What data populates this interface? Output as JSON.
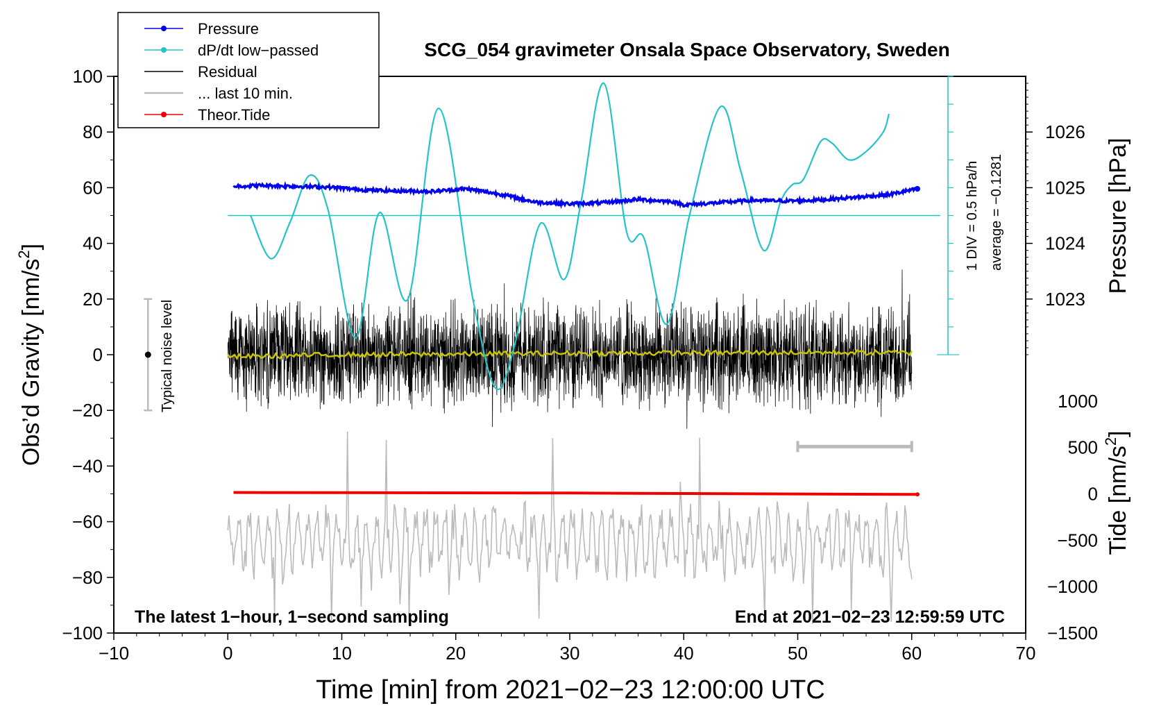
{
  "chart_data": {
    "type": "line",
    "title": "SCG_054 gravimeter Onsala Space Observatory, Sweden",
    "xlabel": "Time [min] from 2021−02−23 12:00:00 UTC",
    "ylabel_main": "Obs’d Gravity [nm/s",
    "ylabel_main_sup": "2",
    "ylabel_main_end": "]",
    "ylabel_pressure": "Pressure [hPa]",
    "ylabel_tide": "Tide [nm/s",
    "ylabel_tide_sup": "2",
    "ylabel_tide_end": "]",
    "xlim": [
      -10,
      70
    ],
    "ylim": [
      -100,
      100
    ],
    "x_ticks": [
      -10,
      0,
      10,
      20,
      30,
      40,
      50,
      60,
      70
    ],
    "x_tick_labels": [
      "−10",
      "0",
      "10",
      "20",
      "30",
      "40",
      "50",
      "60",
      "70"
    ],
    "y_ticks": [
      -100,
      -80,
      -60,
      -40,
      -20,
      0,
      20,
      40,
      60,
      80,
      100
    ],
    "y_tick_labels": [
      "−100",
      "−80",
      "−60",
      "−40",
      "−20",
      "0",
      "20",
      "40",
      "60",
      "80",
      "100"
    ],
    "pressure_axis": {
      "ticks": [
        1023,
        1024,
        1025,
        1026
      ],
      "tick_labels": [
        "1023",
        "1024",
        "1025",
        "1026"
      ],
      "main_equiv": [
        20,
        40,
        60,
        80
      ]
    },
    "tide_axis": {
      "ticks": [
        -1500,
        -1000,
        -500,
        0,
        500,
        1000
      ],
      "tick_labels": [
        "−1500",
        "−1000",
        "−500",
        "0",
        "500",
        "1000"
      ],
      "main_equiv": [
        -100,
        -83.3,
        -66.7,
        -50,
        -33.3,
        -16.7
      ]
    },
    "dpdt_scale": {
      "label1": "1 DIV = 0.5 hPa/h",
      "label2": "average = −0.1281",
      "baseline_main": 50,
      "axis_bottom_main": 0,
      "axis_top_main": 100
    },
    "noise_bar": {
      "label": "Typical noise level",
      "x": -7,
      "low": -20,
      "high": 20
    },
    "last10_bracket": {
      "x_start": 50,
      "x_end": 60,
      "y": -33
    },
    "bottom_left_note": "The latest 1−hour, 1−second sampling",
    "bottom_right_note": "End at 2021−02−23 12:59:59 UTC",
    "legend": [
      {
        "label": "Pressure",
        "color": "#0000ee",
        "marker": true
      },
      {
        "label": "dP/dt low−passed",
        "color": "#22c4c4",
        "marker": true
      },
      {
        "label": "Residual",
        "color": "#000000",
        "marker": false
      },
      {
        "label": "... last 10 min.",
        "color": "#bbbbbb",
        "marker": false
      },
      {
        "label": "Theor.Tide",
        "color": "#ee0000",
        "marker": true
      }
    ],
    "series": [
      {
        "name": "Pressure",
        "color": "#0000ee",
        "x": [
          0.5,
          3,
          6,
          9,
          12,
          15,
          18,
          21,
          24,
          27,
          30,
          33,
          36,
          39,
          40,
          43,
          46,
          49,
          52,
          55,
          58,
          60.5
        ],
        "y": [
          60.5,
          60.8,
          60.5,
          60.2,
          59.2,
          58.8,
          58.7,
          59.6,
          57.6,
          54.8,
          54.2,
          54.6,
          55.8,
          55.0,
          53.8,
          54.6,
          55.5,
          55.2,
          55.6,
          56.5,
          57.5,
          59.6
        ]
      },
      {
        "name": "dP/dt low−passed",
        "color": "#22c4c4",
        "x": [
          2,
          3.8,
          5.5,
          7.2,
          8.8,
          11.2,
          13.3,
          15.8,
          18.5,
          21.5,
          23.5,
          25.2,
          27.4,
          29.5,
          31,
          33,
          35,
          36.5,
          38.5,
          40.5,
          43.2,
          45,
          47,
          48.5,
          49.5,
          50.5,
          52,
          53,
          54.5,
          56,
          57.5,
          58
        ],
        "y": [
          50,
          34.5,
          48,
          64.5,
          52,
          6,
          51,
          20,
          88.5,
          20,
          -12,
          4,
          47,
          27,
          55,
          97.5,
          44,
          42,
          11,
          50,
          89,
          66,
          37.5,
          55,
          61,
          63,
          76.5,
          76,
          70,
          73,
          80,
          86.5
        ]
      },
      {
        "name": "Residual",
        "color": "#000000",
        "x_range": [
          0,
          60
        ],
        "amplitude": 20,
        "y_range": [
          -33,
          37
        ],
        "note": "1-second residual noise trace"
      },
      {
        "name": "Residual smoothed",
        "color": "#c9c400",
        "x": [
          0,
          10,
          20,
          30,
          40,
          50,
          60
        ],
        "y": [
          -0.8,
          0,
          0.2,
          0.5,
          0.6,
          0.8,
          0.7
        ]
      },
      {
        "name": "... last 10 min.",
        "color": "#bbbbbb",
        "x_range": [
          0,
          60
        ],
        "y_range": [
          -100,
          -27
        ],
        "center": -67
      },
      {
        "name": "Theor.Tide",
        "color": "#ee0000",
        "x": [
          0.5,
          30,
          60.5
        ],
        "y": [
          -49.5,
          -49.7,
          -50.2
        ]
      }
    ]
  }
}
